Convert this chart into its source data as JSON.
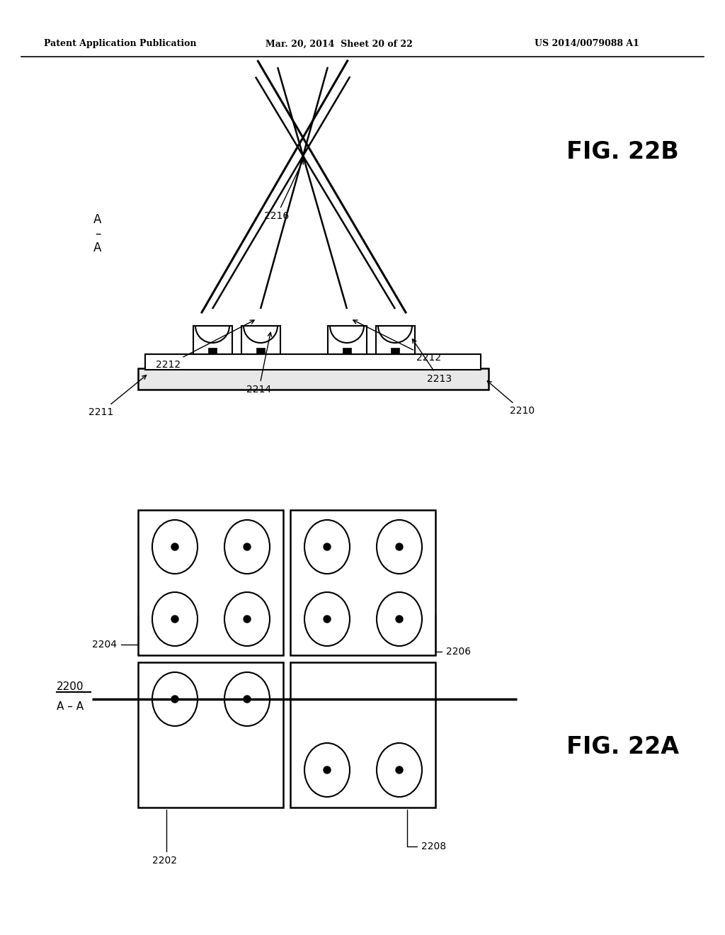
{
  "header_left": "Patent Application Publication",
  "header_mid": "Mar. 20, 2014  Sheet 20 of 22",
  "header_right": "US 2014/0079088 A1",
  "fig22b_label": "FIG. 22B",
  "fig22a_label": "FIG. 22A",
  "bg_color": "#ffffff",
  "label_2200": "2200",
  "label_2202": "2202",
  "label_2204": "2204",
  "label_2206": "2206",
  "label_2208": "2208",
  "label_2210": "2210",
  "label_2211": "2211",
  "label_2212": "2212",
  "label_2213": "2213",
  "label_2214": "2214",
  "label_2216": "2216"
}
